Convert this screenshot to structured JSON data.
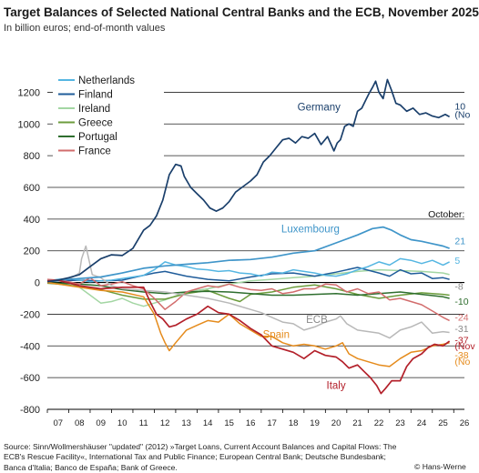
{
  "title": "Target Balances of Selected National Central Banks and the ECB, November 2025",
  "subtitle": "In billion euros; end-of-month values",
  "source": "Source: Sinn/Wollmershäuser \"updated\" (2012) »Target Loans, Current Account Balances and Capital Flows: The ECB's Rescue Facility«, International Tax and Public Finance; European Central Bank; Deutsche Bundesbank; Banca d'Italia; Banco de España; Bank of Greece.",
  "copyright": "© Hans-Werne",
  "chart_data": {
    "type": "line",
    "x_tick_labels": [
      "07",
      "08",
      "09",
      "10",
      "11",
      "12",
      "13",
      "14",
      "15",
      "16",
      "17",
      "18",
      "19",
      "20",
      "21",
      "22",
      "23",
      "24",
      "25",
      "26"
    ],
    "y_ticks": [
      1200,
      1000,
      800,
      600,
      400,
      200,
      0,
      -200,
      -400,
      -600,
      -800
    ],
    "ylim": [
      -800,
      1300
    ],
    "xlim": [
      2006.5,
      2026.0
    ],
    "grid": "horizontal",
    "legend_position": "top-left",
    "legend": [
      "Netherlands",
      "Finland",
      "Ireland",
      "Greece",
      "Portugal",
      "France"
    ],
    "series_labels": [
      {
        "text": "Germany",
        "series": "Germany",
        "x": 2019.2,
        "y": 1085,
        "color": "#1a3f6b"
      },
      {
        "text": "Luxembourg",
        "series": "Luxembourg",
        "x": 2018.8,
        "y": 315,
        "color": "#3f95c9"
      },
      {
        "text": "ECB",
        "series": "ECB",
        "x": 2019.1,
        "y": -255,
        "color": "#8a8a8a"
      },
      {
        "text": "Spain",
        "series": "Spain",
        "x": 2017.2,
        "y": -350,
        "color": "#e58b1c"
      },
      {
        "text": "Italy",
        "series": "Italy",
        "x": 2020.0,
        "y": -670,
        "color": "#b3202a"
      }
    ],
    "annotations": [
      {
        "text": "October:",
        "x": 2024.3,
        "y": 410
      },
      {
        "text": "10",
        "x": 2025.55,
        "y": 1090,
        "color": "#1a3f6b"
      },
      {
        "text": "(No",
        "x": 2025.55,
        "y": 1040,
        "color": "#1a3f6b"
      },
      {
        "text": "21",
        "x": 2025.55,
        "y": 240,
        "color": "#3f95c9"
      },
      {
        "text": "5",
        "x": 2025.55,
        "y": 118,
        "color": "#55b6e2"
      },
      {
        "text": "-8",
        "x": 2025.55,
        "y": -45,
        "color": "#8a8a8a"
      },
      {
        "text": "-10",
        "x": 2025.55,
        "y": -140,
        "color": "#2e6e2e"
      },
      {
        "text": "-24",
        "x": 2025.55,
        "y": -240,
        "color": "#d26c6c"
      },
      {
        "text": "-31",
        "x": 2025.55,
        "y": -313,
        "color": "#8a8a8a"
      },
      {
        "text": "-37",
        "x": 2025.55,
        "y": -383,
        "color": "#b3202a"
      },
      {
        "text": "(Nov",
        "x": 2025.55,
        "y": -420,
        "color": "#b3202a"
      },
      {
        "text": "-38",
        "x": 2025.55,
        "y": -480,
        "color": "#e58b1c"
      },
      {
        "text": "(No",
        "x": 2025.55,
        "y": -520,
        "color": "#e58b1c"
      }
    ],
    "series": [
      {
        "name": "Germany",
        "color": "#1a3f6b",
        "width": 1.7,
        "x": [
          2006.5,
          2007,
          2007.5,
          2008,
          2008.5,
          2009,
          2009.5,
          2010,
          2010.5,
          2011,
          2011.3,
          2011.6,
          2011.9,
          2012.2,
          2012.5,
          2012.75,
          2012.9,
          2013.2,
          2013.5,
          2013.8,
          2014.1,
          2014.4,
          2014.7,
          2015,
          2015.3,
          2015.6,
          2016,
          2016.3,
          2016.6,
          2016.9,
          2017.2,
          2017.5,
          2017.8,
          2018.1,
          2018.4,
          2018.7,
          2019,
          2019.3,
          2019.6,
          2019.9,
          2020.05,
          2020.2,
          2020.4,
          2020.6,
          2020.8,
          2021,
          2021.2,
          2021.4,
          2021.55,
          2021.7,
          2021.85,
          2022,
          2022.2,
          2022.4,
          2022.6,
          2022.8,
          2023,
          2023.3,
          2023.6,
          2023.9,
          2024.2,
          2024.5,
          2024.8,
          2025.1,
          2025.3
        ],
        "y": [
          5,
          15,
          30,
          50,
          100,
          150,
          175,
          170,
          215,
          330,
          360,
          420,
          520,
          680,
          745,
          735,
          670,
          600,
          560,
          520,
          470,
          450,
          470,
          510,
          570,
          600,
          640,
          680,
          760,
          800,
          850,
          900,
          910,
          880,
          920,
          910,
          940,
          870,
          920,
          830,
          880,
          900,
          985,
          1000,
          985,
          1080,
          1100,
          1155,
          1195,
          1230,
          1270,
          1200,
          1160,
          1280,
          1210,
          1130,
          1120,
          1080,
          1100,
          1060,
          1070,
          1050,
          1040,
          1060,
          1045
        ]
      },
      {
        "name": "Luxembourg",
        "color": "#3f95c9",
        "width": 1.7,
        "x": [
          2006.5,
          2007,
          2008,
          2009,
          2010,
          2011,
          2012,
          2013,
          2014,
          2015,
          2016,
          2017,
          2018,
          2019,
          2020,
          2021,
          2021.7,
          2022.2,
          2022.6,
          2023,
          2023.5,
          2024,
          2024.5,
          2025,
          2025.3
        ],
        "y": [
          10,
          15,
          25,
          35,
          60,
          90,
          105,
          115,
          125,
          140,
          145,
          160,
          185,
          200,
          250,
          300,
          340,
          350,
          330,
          300,
          270,
          260,
          245,
          230,
          215
        ]
      },
      {
        "name": "Netherlands",
        "color": "#55b6e2",
        "width": 1.5,
        "x": [
          2006.5,
          2007,
          2007.5,
          2008,
          2008.5,
          2009,
          2009.5,
          2010,
          2010.5,
          2011,
          2011.5,
          2012,
          2012.5,
          2013,
          2013.5,
          2014,
          2014.5,
          2015,
          2015.5,
          2016,
          2016.5,
          2017,
          2017.5,
          2018,
          2018.5,
          2019,
          2019.5,
          2020,
          2020.5,
          2021,
          2021.5,
          2022,
          2022.5,
          2023,
          2023.5,
          2024,
          2024.5,
          2025,
          2025.3
        ],
        "y": [
          10,
          20,
          25,
          15,
          5,
          10,
          15,
          25,
          35,
          45,
          80,
          130,
          110,
          100,
          85,
          80,
          70,
          75,
          60,
          55,
          40,
          65,
          60,
          80,
          70,
          60,
          45,
          40,
          55,
          80,
          100,
          130,
          110,
          150,
          140,
          120,
          140,
          110,
          130
        ]
      },
      {
        "name": "Finland",
        "color": "#1f5c9a",
        "width": 1.5,
        "x": [
          2006.5,
          2007,
          2008,
          2009,
          2010,
          2011,
          2011.5,
          2012,
          2013,
          2014,
          2015,
          2016,
          2017,
          2018,
          2019,
          2020,
          2021,
          2022,
          2022.5,
          2023,
          2023.5,
          2024,
          2024.5,
          2025,
          2025.3
        ],
        "y": [
          5,
          10,
          15,
          10,
          15,
          45,
          60,
          70,
          40,
          20,
          10,
          35,
          55,
          60,
          40,
          65,
          95,
          60,
          40,
          80,
          55,
          60,
          25,
          30,
          20
        ]
      },
      {
        "name": "Ireland",
        "color": "#a3d6a3",
        "width": 1.5,
        "x": [
          2006.5,
          2007,
          2007.5,
          2008,
          2008.5,
          2009,
          2009.5,
          2010,
          2010.5,
          2011,
          2011.5,
          2012,
          2013,
          2014,
          2015,
          2016,
          2017,
          2018,
          2019,
          2020,
          2021,
          2022,
          2023,
          2024,
          2025,
          2025.3
        ],
        "y": [
          5,
          10,
          0,
          -30,
          -80,
          -130,
          -120,
          -100,
          -130,
          -150,
          -130,
          -110,
          -60,
          -40,
          -10,
          10,
          20,
          30,
          40,
          55,
          70,
          80,
          75,
          70,
          60,
          50
        ]
      },
      {
        "name": "Greece",
        "color": "#6c9c3c",
        "width": 1.5,
        "x": [
          2006.5,
          2007,
          2008,
          2009,
          2010,
          2011,
          2012,
          2013,
          2014,
          2015,
          2015.5,
          2016,
          2017,
          2018,
          2019,
          2020,
          2021,
          2022,
          2023,
          2024,
          2025,
          2025.3
        ],
        "y": [
          -5,
          -10,
          -25,
          -45,
          -80,
          -105,
          -105,
          -70,
          -50,
          -100,
          -120,
          -75,
          -60,
          -30,
          -15,
          -40,
          -75,
          -100,
          -80,
          -65,
          -75,
          -80
        ]
      },
      {
        "name": "Portugal",
        "color": "#2e6e2e",
        "width": 1.5,
        "x": [
          2006.5,
          2007,
          2008,
          2009,
          2010,
          2011,
          2012,
          2013,
          2014,
          2015,
          2016,
          2017,
          2018,
          2019,
          2020,
          2021,
          2022,
          2023,
          2024,
          2025,
          2025.3
        ],
        "y": [
          0,
          -5,
          -10,
          -20,
          -45,
          -60,
          -70,
          -60,
          -55,
          -60,
          -70,
          -80,
          -80,
          -75,
          -70,
          -80,
          -70,
          -60,
          -75,
          -90,
          -100
        ]
      },
      {
        "name": "France",
        "color": "#d26c6c",
        "width": 1.5,
        "x": [
          2006.5,
          2007,
          2007.5,
          2008,
          2008.5,
          2009,
          2009.5,
          2010,
          2010.5,
          2011,
          2011.5,
          2012,
          2012.5,
          2013,
          2013.5,
          2014,
          2014.5,
          2015,
          2015.5,
          2016,
          2016.5,
          2017,
          2017.5,
          2018,
          2018.5,
          2019,
          2019.5,
          2020,
          2020.5,
          2021,
          2021.5,
          2022,
          2022.5,
          2023,
          2023.5,
          2024,
          2024.5,
          2025,
          2025.3
        ],
        "y": [
          20,
          15,
          5,
          -10,
          30,
          -20,
          -10,
          5,
          -20,
          -40,
          -100,
          -170,
          -120,
          -60,
          -40,
          -20,
          -30,
          -10,
          -30,
          -45,
          -50,
          -40,
          -70,
          -60,
          -40,
          -40,
          -10,
          -15,
          -60,
          -40,
          -70,
          -60,
          -110,
          -100,
          -120,
          -140,
          -180,
          -220,
          -240
        ]
      },
      {
        "name": "ECB",
        "color": "#b8b8b8",
        "width": 1.5,
        "x": [
          2006.5,
          2007,
          2007.5,
          2008,
          2008.1,
          2008.3,
          2008.6,
          2009,
          2009.5,
          2010,
          2011,
          2012,
          2013,
          2014,
          2015,
          2016,
          2016.5,
          2017,
          2017.5,
          2018,
          2018.5,
          2019,
          2019.5,
          2020,
          2020.2,
          2020.5,
          2021,
          2022,
          2022.5,
          2023,
          2023.5,
          2024,
          2024.5,
          2025,
          2025.3
        ],
        "y": [
          10,
          15,
          20,
          60,
          150,
          230,
          50,
          30,
          -20,
          -40,
          -50,
          -60,
          -80,
          -100,
          -130,
          -170,
          -190,
          -220,
          -250,
          -260,
          -300,
          -280,
          -250,
          -230,
          -210,
          -260,
          -300,
          -320,
          -350,
          -300,
          -280,
          -250,
          -320,
          -310,
          -315
        ]
      },
      {
        "name": "Spain",
        "color": "#e58b1c",
        "width": 1.5,
        "x": [
          2006.5,
          2007,
          2008,
          2009,
          2010,
          2011,
          2011.5,
          2011.8,
          2012,
          2012.2,
          2012.5,
          2013,
          2013.5,
          2014,
          2014.5,
          2015,
          2015.5,
          2016,
          2016.5,
          2017,
          2017.5,
          2018,
          2018.5,
          2019,
          2019.5,
          2020,
          2020.3,
          2020.6,
          2021,
          2021.5,
          2022,
          2022.5,
          2023,
          2023.5,
          2024,
          2024.5,
          2025,
          2025.3
        ],
        "y": [
          0,
          -10,
          -30,
          -50,
          -60,
          -90,
          -200,
          -320,
          -380,
          -430,
          -380,
          -300,
          -270,
          -240,
          -250,
          -200,
          -260,
          -300,
          -340,
          -340,
          -380,
          -400,
          -390,
          -400,
          -420,
          -400,
          -380,
          -450,
          -480,
          -500,
          -520,
          -530,
          -480,
          -440,
          -430,
          -400,
          -390,
          -380
        ]
      },
      {
        "name": "Italy",
        "color": "#b3202a",
        "width": 1.7,
        "x": [
          2006.5,
          2007,
          2008,
          2009,
          2010,
          2011,
          2011.3,
          2011.6,
          2011.9,
          2012.2,
          2012.5,
          2013,
          2013.5,
          2014,
          2014.5,
          2015,
          2015.5,
          2016,
          2016.5,
          2017,
          2017.5,
          2018,
          2018.5,
          2019,
          2019.5,
          2020,
          2020.3,
          2020.6,
          2021,
          2021.3,
          2021.6,
          2021.9,
          2022.1,
          2022.3,
          2022.6,
          2023,
          2023.3,
          2023.6,
          2024,
          2024.3,
          2024.6,
          2025,
          2025.3
        ],
        "y": [
          10,
          15,
          -20,
          -40,
          -30,
          -30,
          -120,
          -200,
          -230,
          -280,
          -270,
          -230,
          -200,
          -150,
          -190,
          -200,
          -240,
          -290,
          -330,
          -400,
          -420,
          -440,
          -480,
          -430,
          -460,
          -470,
          -500,
          -540,
          -520,
          -560,
          -600,
          -650,
          -700,
          -670,
          -620,
          -620,
          -530,
          -480,
          -450,
          -410,
          -390,
          -400,
          -370
        ]
      }
    ]
  }
}
